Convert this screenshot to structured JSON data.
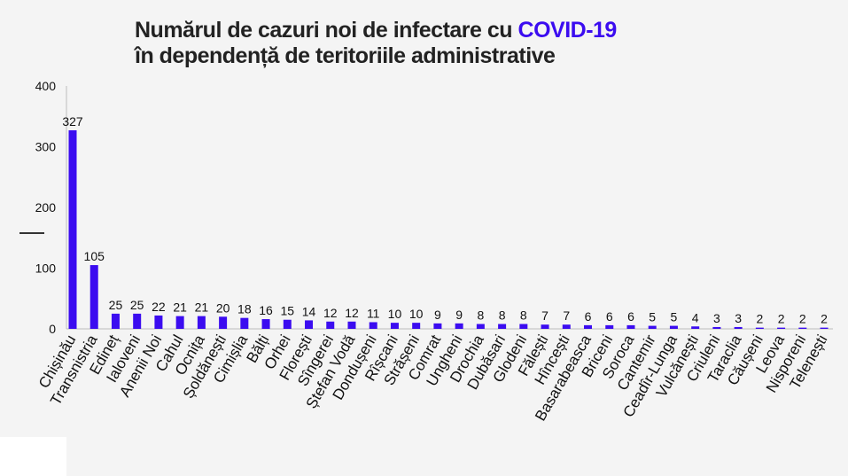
{
  "title": {
    "line1_prefix": "Numărul de cazuri noi de infectare cu ",
    "line1_highlight": "COVID-19",
    "line2": "în dependență de teritoriile administrative"
  },
  "colors": {
    "bar": "#3b0cf0",
    "highlight": "#3b0cf0",
    "background": "#f4f4f4"
  },
  "chart_data": {
    "type": "bar",
    "ylim": [
      0,
      400
    ],
    "yticks": [
      0,
      100,
      200,
      300,
      400
    ],
    "grid": false,
    "categories": [
      "Chișinău",
      "Transnistria",
      "Edineț",
      "Ialoveni",
      "Anenii Noi",
      "Cahul",
      "Ocnița",
      "Șoldănești",
      "Cimișlia",
      "Bălți",
      "Orhei",
      "Florești",
      "Sîngerei",
      "Ștefan Vodă",
      "Dondușeni",
      "Rîșcani",
      "Strășeni",
      "Comrat",
      "Ungheni",
      "Drochia",
      "Dubăsari",
      "Glodeni",
      "Fălești",
      "Hîncești",
      "Basarabeasca",
      "Briceni",
      "Soroca",
      "Cantemir",
      "Ceadîr-Lunga",
      "Vulcănești",
      "Criuleni",
      "Taraclia",
      "Căușeni",
      "Leova",
      "Nisporeni",
      "Telenești"
    ],
    "values": [
      327,
      105,
      25,
      25,
      22,
      21,
      21,
      20,
      18,
      16,
      15,
      14,
      12,
      12,
      11,
      10,
      10,
      9,
      9,
      8,
      8,
      8,
      7,
      7,
      6,
      6,
      6,
      5,
      5,
      4,
      3,
      3,
      2,
      2,
      2,
      2
    ]
  }
}
